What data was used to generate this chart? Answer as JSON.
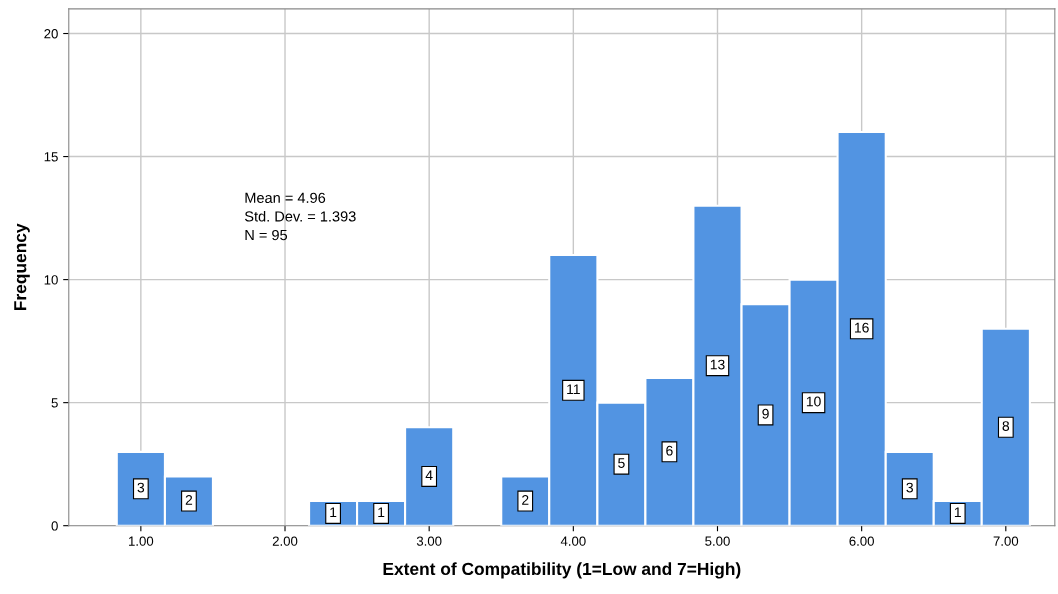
{
  "chart_data": {
    "type": "histogram",
    "xlabel": "Extent of Compatibility (1=Low and 7=High)",
    "ylabel": "Frequency",
    "bins": [
      0.833,
      1.167,
      1.5,
      1.833,
      2.167,
      2.5,
      2.833,
      3.167,
      3.5,
      3.833,
      4.167,
      4.5,
      4.833,
      5.167,
      5.5,
      5.833,
      6.167,
      6.5,
      6.833,
      7.167
    ],
    "values": [
      3,
      2,
      0,
      0,
      1,
      1,
      4,
      0,
      2,
      11,
      5,
      6,
      13,
      9,
      10,
      16,
      3,
      1,
      8
    ],
    "value_labels": [
      "3",
      "2",
      null,
      null,
      "1",
      "1",
      "4",
      null,
      "2",
      "11",
      "5",
      "6",
      "13",
      "9",
      "10",
      "16",
      "3",
      "1",
      "8"
    ],
    "color": "#5294e2",
    "xlim": [
      0.5,
      7.34
    ],
    "ylim": [
      0,
      21
    ],
    "xticks": [
      {
        "value": 1,
        "label": "1.00"
      },
      {
        "value": 2,
        "label": "2.00"
      },
      {
        "value": 3,
        "label": "3.00"
      },
      {
        "value": 4,
        "label": "4.00"
      },
      {
        "value": 5,
        "label": "5.00"
      },
      {
        "value": 6,
        "label": "6.00"
      },
      {
        "value": 7,
        "label": "7.00"
      }
    ],
    "yticks": [
      0,
      5,
      10,
      15,
      20
    ],
    "grid": true,
    "annotations": [
      "Mean = 4.96",
      "Std. Dev. = 1.393",
      "N = 95"
    ]
  }
}
